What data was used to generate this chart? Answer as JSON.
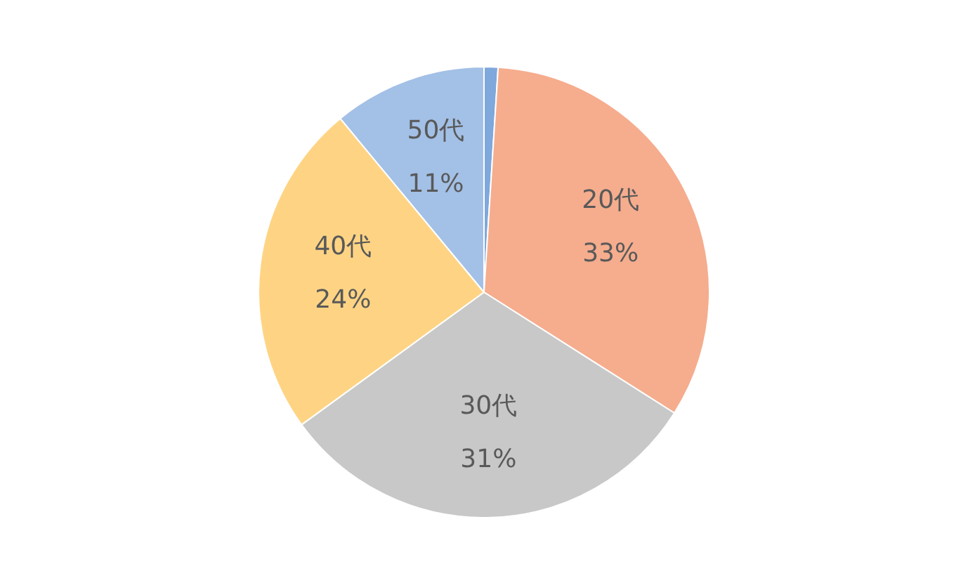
{
  "chart_data": {
    "type": "pie",
    "categories": [
      null,
      "20代",
      "30代",
      "40代",
      "50代"
    ],
    "values": [
      1,
      33,
      31,
      24,
      11
    ],
    "value_labels": [
      null,
      "33%",
      "31%",
      "24%",
      "11%"
    ],
    "colors": [
      "#7fa8dc",
      "#f5ad8e",
      "#c8c8c8",
      "#fed484",
      "#a3c0e6"
    ],
    "legend": false
  }
}
